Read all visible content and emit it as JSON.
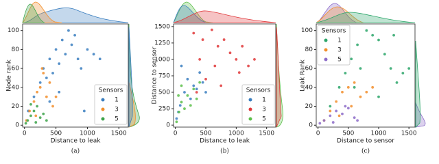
{
  "chart_data": [
    {
      "type": "scatter",
      "x_label": "Distance to leak",
      "y_label": "Node rank",
      "caption": "(a)",
      "legend_title": "Sensors",
      "legend": "lower right",
      "xlim": [
        -30,
        1650
      ],
      "ylim": [
        -2,
        107
      ],
      "xticks": [
        0,
        500,
        1000,
        1500
      ],
      "yticks": [
        0,
        20,
        40,
        60,
        80,
        100
      ],
      "series": [
        {
          "name": "1",
          "color": "#3a7ebf",
          "x": [
            60,
            150,
            250,
            300,
            350,
            400,
            450,
            500,
            550,
            600,
            650,
            700,
            750,
            800,
            850,
            900,
            1000,
            1100,
            1200,
            950,
            550,
            400
          ],
          "y": [
            15,
            30,
            45,
            60,
            50,
            70,
            55,
            80,
            65,
            90,
            75,
            100,
            85,
            95,
            70,
            60,
            80,
            75,
            70,
            15,
            35,
            25
          ]
        },
        {
          "name": "3",
          "color": "#f28e2b",
          "x": [
            30,
            80,
            150,
            200,
            250,
            300,
            350,
            400,
            450,
            500,
            280,
            180
          ],
          "y": [
            5,
            15,
            25,
            35,
            40,
            55,
            30,
            45,
            20,
            30,
            60,
            10
          ]
        },
        {
          "name": "5",
          "color": "#3ca34a",
          "x": [
            20,
            50,
            100,
            150,
            200,
            250,
            300,
            350,
            100,
            180
          ],
          "y": [
            2,
            5,
            10,
            15,
            20,
            8,
            12,
            5,
            22,
            3
          ]
        }
      ]
    },
    {
      "type": "scatter",
      "x_label": "Distance to leak",
      "y_label": "Distance to sensor",
      "caption": "(b)",
      "legend_title": "Sensors",
      "legend": "lower right",
      "xlim": [
        -30,
        1650
      ],
      "ylim": [
        -30,
        1540
      ],
      "xticks": [
        0,
        500,
        1000,
        1500
      ],
      "yticks": [
        0,
        250,
        500,
        750,
        1000,
        1250,
        1500
      ],
      "series": [
        {
          "name": "1",
          "color": "#3a7ebf",
          "x": [
            20,
            80,
            150,
            200,
            250,
            300,
            350,
            400,
            450,
            100,
            500,
            50
          ],
          "y": [
            100,
            300,
            500,
            700,
            400,
            600,
            550,
            800,
            650,
            900,
            500,
            200
          ]
        },
        {
          "name": "3",
          "color": "#e0393b",
          "x": [
            300,
            450,
            600,
            700,
            800,
            900,
            1000,
            1100,
            1200,
            1300,
            650,
            500,
            400,
            750,
            350,
            1050
          ],
          "y": [
            1400,
            1300,
            1450,
            1200,
            1300,
            1100,
            1000,
            1200,
            900,
            1000,
            900,
            700,
            1000,
            600,
            500,
            800
          ]
        },
        {
          "name": "5",
          "color": "#5cbf4a",
          "x": [
            20,
            60,
            100,
            150,
            200,
            250,
            300,
            350,
            400,
            100,
            50
          ],
          "y": [
            50,
            200,
            350,
            250,
            450,
            300,
            550,
            400,
            650,
            600,
            450
          ]
        }
      ]
    },
    {
      "type": "scatter",
      "x_label": "Distance to sensor",
      "y_label": "Leak Rank",
      "caption": "(c)",
      "legend_title": "Sensors",
      "legend": "upper left",
      "xlim": [
        -30,
        1600
      ],
      "ylim": [
        -2,
        107
      ],
      "xticks": [
        0,
        500,
        1000,
        1500
      ],
      "yticks": [
        0,
        20,
        40,
        60,
        80,
        100
      ],
      "series": [
        {
          "name": "1",
          "color": "#2ca66a",
          "x": [
            200,
            350,
            450,
            550,
            650,
            800,
            900,
            1000,
            1100,
            1200,
            1300,
            1400,
            700,
            600,
            1000,
            1250,
            1500
          ],
          "y": [
            20,
            40,
            55,
            70,
            85,
            100,
            95,
            90,
            75,
            60,
            45,
            55,
            60,
            40,
            30,
            95,
            60
          ]
        },
        {
          "name": "3",
          "color": "#f28e2b",
          "x": [
            100,
            200,
            300,
            400,
            500,
            600,
            700,
            800,
            550,
            350,
            900
          ],
          "y": [
            5,
            15,
            25,
            35,
            40,
            45,
            30,
            35,
            20,
            10,
            40
          ]
        },
        {
          "name": "5",
          "color": "#8c6bc8",
          "x": [
            30,
            100,
            200,
            300,
            400,
            500,
            600,
            250,
            450,
            650
          ],
          "y": [
            2,
            5,
            10,
            15,
            12,
            18,
            8,
            3,
            20,
            5
          ]
        }
      ]
    }
  ]
}
